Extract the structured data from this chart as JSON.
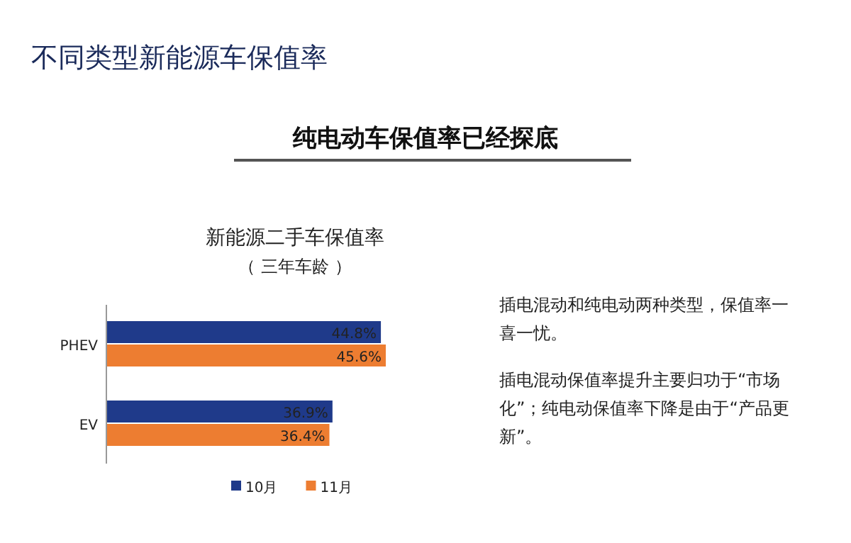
{
  "chart_data": {
    "type": "bar",
    "orientation": "horizontal",
    "title": "新能源二手车保值率",
    "subtitle": "（ 三年车龄 ）",
    "categories": [
      "PHEV",
      "EV"
    ],
    "series": [
      {
        "name": "10月",
        "color": "#1f3a8a",
        "values": [
          44.8,
          36.9
        ],
        "value_labels": [
          "44.8%",
          "36.9%"
        ]
      },
      {
        "name": "11月",
        "color": "#ed7d31",
        "values": [
          45.6,
          36.4
        ],
        "value_labels": [
          "45.6%",
          "36.4%"
        ]
      }
    ],
    "legend": "bottom",
    "annotations": [
      "不同类型新能源车保值率",
      "纯电动车保值率已经探底",
      "插电混动和纯电动两种类型，保值率一喜一忧。",
      "插电混动保值率提升主要归功于“市场化”；纯电动保值率下降是由于“产品更新”。"
    ]
  }
}
